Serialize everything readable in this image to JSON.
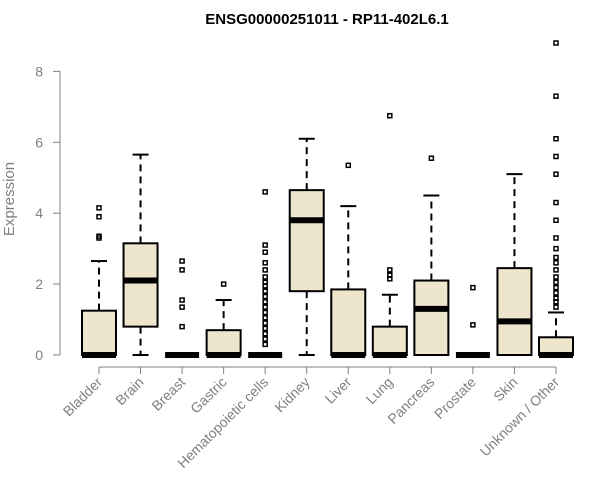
{
  "chart_data": {
    "type": "boxplot",
    "title": "ENSG00000251011 - RP11-402L6.1",
    "xlabel": "",
    "ylabel": "Expression",
    "ylim": [
      0,
      8.8
    ],
    "yticks": [
      0,
      2,
      4,
      6,
      8
    ],
    "grid": false,
    "legend": "none",
    "colors": {
      "box_fill": "#ede6cd",
      "stroke": "#000000",
      "axis": "#808080"
    },
    "categories": [
      "Bladder",
      "Brain",
      "Breast",
      "Gastric",
      "Hematopoietic cells",
      "Kidney",
      "Liver",
      "Lung",
      "Pancreas",
      "Prostate",
      "Skin",
      "Unknown / Other"
    ],
    "boxes": [
      {
        "category": "Bladder",
        "min": 0,
        "q1": 0,
        "median": 0,
        "q3": 1.25,
        "max": 2.65,
        "outliers": [
          3.3,
          3.35,
          3.9,
          4.15
        ]
      },
      {
        "category": "Brain",
        "min": 0,
        "q1": 0.8,
        "median": 2.1,
        "q3": 3.15,
        "max": 5.65,
        "outliers": []
      },
      {
        "category": "Breast",
        "min": 0,
        "q1": 0,
        "median": 0,
        "q3": 0,
        "max": 0,
        "outliers": [
          0.8,
          1.35,
          1.55,
          2.4,
          2.65
        ]
      },
      {
        "category": "Gastric",
        "min": 0,
        "q1": 0,
        "median": 0,
        "q3": 0.7,
        "max": 1.55,
        "outliers": [
          2.0
        ]
      },
      {
        "category": "Hematopoietic cells",
        "min": 0,
        "q1": 0,
        "median": 0,
        "q3": 0,
        "max": 0,
        "outliers": [
          0.3,
          0.45,
          0.6,
          0.75,
          0.9,
          1.05,
          1.2,
          1.35,
          1.5,
          1.65,
          1.8,
          1.95,
          2.05,
          2.2,
          2.4,
          2.6,
          2.9,
          3.1,
          4.6
        ]
      },
      {
        "category": "Kidney",
        "min": 0,
        "q1": 1.8,
        "median": 3.8,
        "q3": 4.65,
        "max": 6.1,
        "outliers": []
      },
      {
        "category": "Liver",
        "min": 0,
        "q1": 0,
        "median": 0,
        "q3": 1.85,
        "max": 4.2,
        "outliers": [
          5.35
        ]
      },
      {
        "category": "Lung",
        "min": 0,
        "q1": 0,
        "median": 0,
        "q3": 0.8,
        "max": 1.7,
        "outliers": [
          2.15,
          2.25,
          2.4,
          6.75
        ]
      },
      {
        "category": "Pancreas",
        "min": 0,
        "q1": 0,
        "median": 1.3,
        "q3": 2.1,
        "max": 4.5,
        "outliers": [
          5.55
        ]
      },
      {
        "category": "Prostate",
        "min": 0,
        "q1": 0,
        "median": 0,
        "q3": 0,
        "max": 0,
        "outliers": [
          0.85,
          1.9
        ]
      },
      {
        "category": "Skin",
        "min": 0,
        "q1": 0,
        "median": 0.95,
        "q3": 2.45,
        "max": 5.1,
        "outliers": []
      },
      {
        "category": "Unknown / Other",
        "min": 0,
        "q1": 0,
        "median": 0,
        "q3": 0.5,
        "max": 1.2,
        "outliers": [
          1.35,
          1.5,
          1.6,
          1.75,
          1.9,
          2.05,
          2.2,
          2.4,
          2.6,
          2.75,
          3.0,
          3.3,
          3.8,
          4.3,
          5.1,
          5.6,
          6.1,
          7.3,
          8.8
        ]
      }
    ]
  }
}
